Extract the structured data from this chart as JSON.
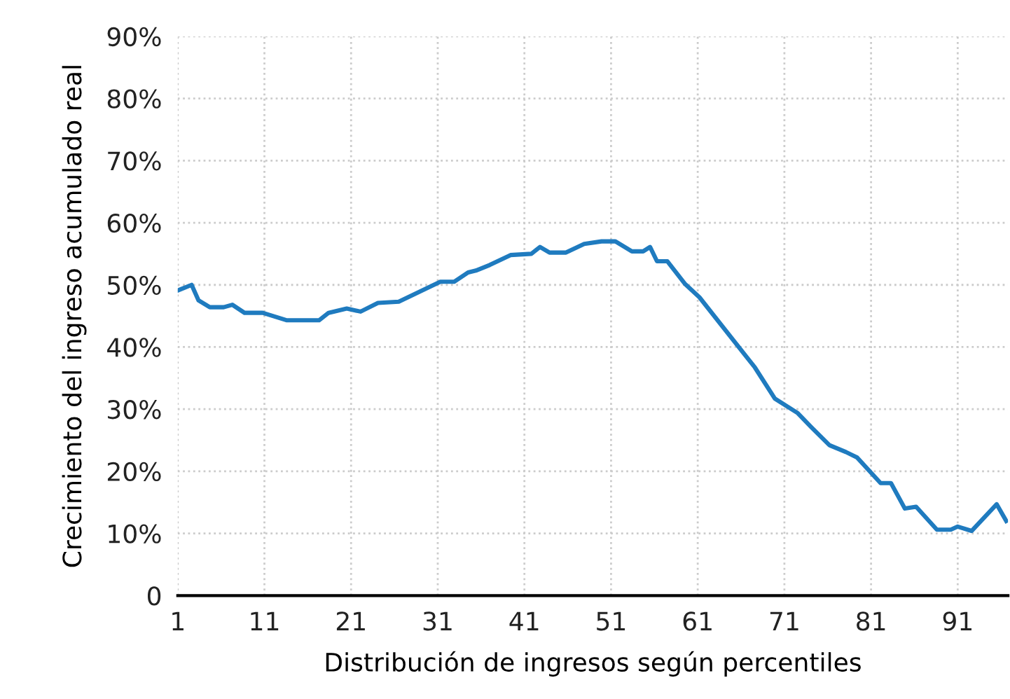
{
  "chart_data": {
    "type": "line",
    "xlabel": "Distribución de ingresos según percentiles",
    "ylabel": "Crecimiento del ingreso acumulado real",
    "xlim": [
      1,
      96.8
    ],
    "xticks": [
      1,
      11,
      21,
      31,
      41,
      51,
      61,
      71,
      81,
      91
    ],
    "ylim": [
      0,
      90
    ],
    "yticks": [
      {
        "value": 0,
        "label": "0"
      },
      {
        "value": 10,
        "label": "10%"
      },
      {
        "value": 20,
        "label": "20%"
      },
      {
        "value": 30,
        "label": "30%"
      },
      {
        "value": 40,
        "label": "40%"
      },
      {
        "value": 50,
        "label": "50%"
      },
      {
        "value": 60,
        "label": "60%"
      },
      {
        "value": 70,
        "label": "70%"
      },
      {
        "value": 80,
        "label": "80%"
      },
      {
        "value": 90,
        "label": "90%"
      }
    ],
    "grid": true,
    "marker": "none",
    "line_style": "solid",
    "series": [
      {
        "color": "#1f7bbf",
        "x": [
          1,
          2.6,
          3.4,
          4.7,
          6.3,
          7.3,
          8.7,
          10.8,
          13.6,
          17.3,
          18.4,
          20.5,
          22.1,
          24.1,
          26.5,
          28.9,
          31.3,
          32.9,
          34.5,
          35.4,
          37,
          39.4,
          41.8,
          42.8,
          43.9,
          45.8,
          47.9,
          49.9,
          51.5,
          53.4,
          54.7,
          55.5,
          56.3,
          57.5,
          59.5,
          61.2,
          67.6,
          69.9,
          72.5,
          74.1,
          76.2,
          78.1,
          79.4,
          82.1,
          83.3,
          84.9,
          86.2,
          88.6,
          90.2,
          91,
          92.6,
          95.5,
          96.6
        ],
        "values": [
          49.1,
          50,
          47.5,
          46.4,
          46.4,
          46.8,
          45.5,
          45.5,
          44.3,
          44.3,
          45.5,
          46.2,
          45.7,
          47.1,
          47.3,
          48.9,
          50.5,
          50.5,
          52,
          52.3,
          53.2,
          54.8,
          55,
          56.1,
          55.2,
          55.2,
          56.6,
          57,
          57,
          55.4,
          55.4,
          56.1,
          53.8,
          53.8,
          50.2,
          48,
          36.7,
          31.7,
          29.4,
          27.1,
          24.2,
          23.1,
          22.2,
          18.1,
          18.1,
          14,
          14.3,
          10.6,
          10.6,
          11.1,
          10.4,
          14.7,
          12
        ]
      }
    ]
  }
}
